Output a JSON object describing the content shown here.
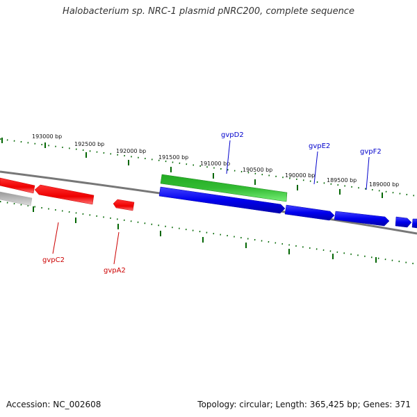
{
  "title": "Halobacterium sp. NRC-1 plasmid pNRC200, complete sequence",
  "footer": {
    "accession": "Accession: NC_002608",
    "summary": "Topology: circular; Length: 365,425 bp; Genes: 371"
  },
  "colors": {
    "forward_gene": "#0000ee",
    "reverse_gene": "#ee0000",
    "rna_feature": "#33bb33",
    "other_feature": "#bbbbbb",
    "backbone": "#888888",
    "tick": "#006600",
    "forward_label": "#0000cc",
    "reverse_label": "#cc0000"
  },
  "scale_labels": [
    "193000 bp",
    "192500 bp",
    "192000 bp",
    "191500 bp",
    "191000 bp",
    "190500 bp",
    "190000 bp",
    "189500 bp",
    "189000 bp"
  ],
  "gene_labels": {
    "forward": [
      "gvpD2",
      "gvpE2",
      "gvpF2"
    ],
    "reverse": [
      "gvpC2",
      "gvpA2"
    ]
  }
}
